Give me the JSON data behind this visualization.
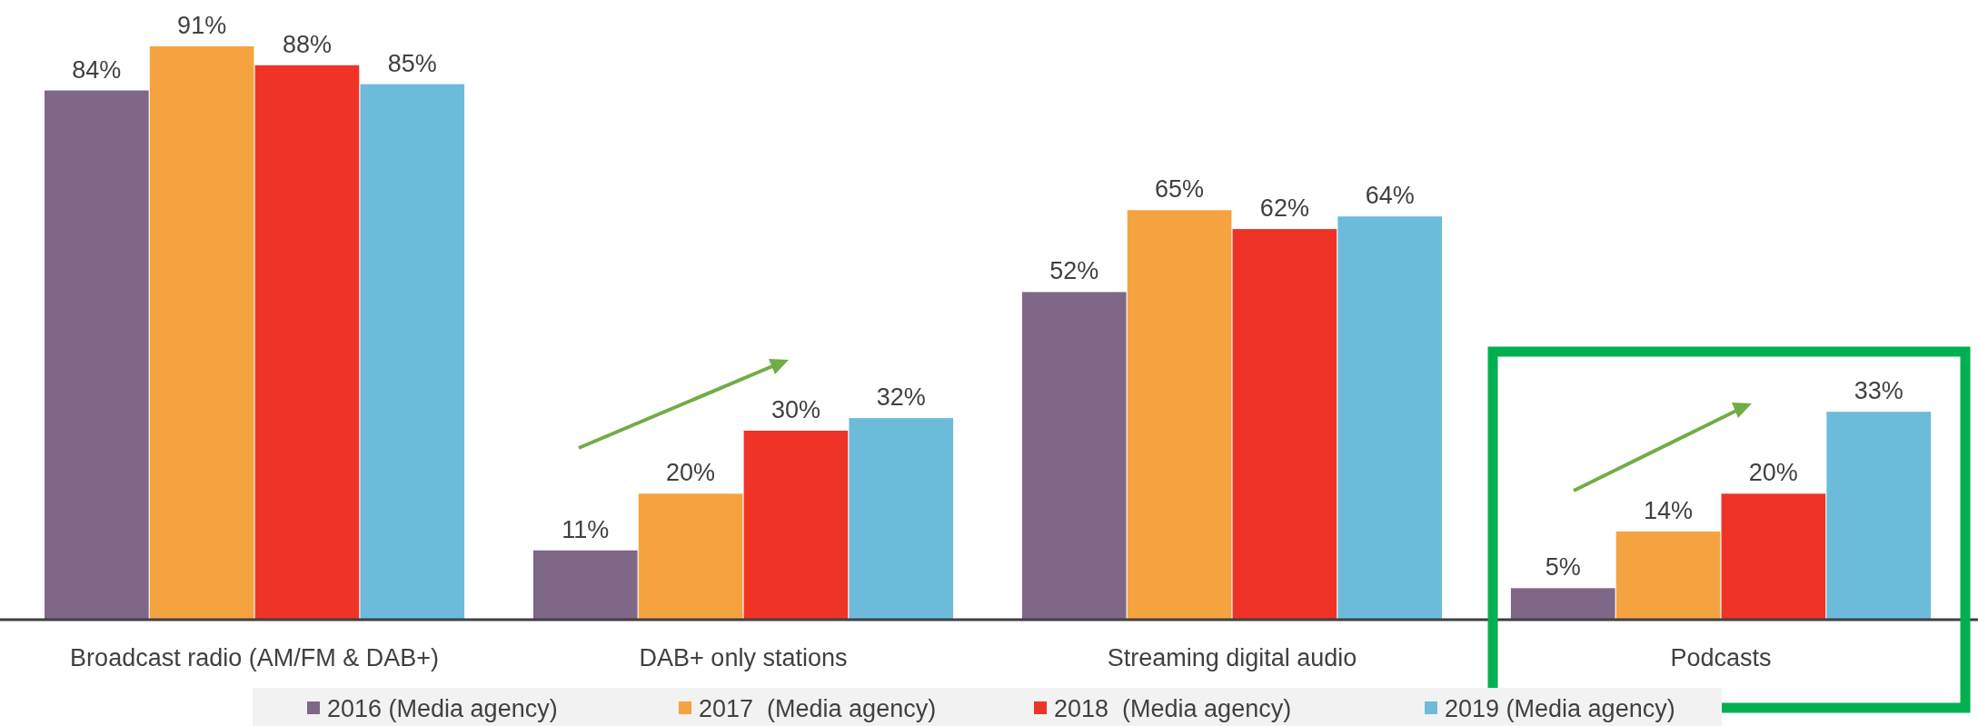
{
  "chart_data": {
    "type": "bar",
    "categories": [
      "Broadcast radio (AM/FM & DAB+)",
      "DAB+ only stations",
      "Streaming digital audio",
      "Podcasts"
    ],
    "series": [
      {
        "name": "2016 (Media agency)",
        "color": "#7f6788",
        "values": [
          84,
          11,
          52,
          5
        ],
        "value_labels": [
          "84%",
          "11%",
          "52%",
          "5%"
        ]
      },
      {
        "name": "2017  (Media agency)",
        "color": "#f5a340",
        "values": [
          91,
          20,
          65,
          14
        ],
        "value_labels": [
          "91%",
          "20%",
          "65%",
          "14%"
        ]
      },
      {
        "name": "2018  (Media agency)",
        "color": "#ef3326",
        "values": [
          88,
          30,
          62,
          20
        ],
        "value_labels": [
          "88%",
          "30%",
          "62%",
          "20%"
        ]
      },
      {
        "name": "2019 (Media agency)",
        "color": "#6cbbdb",
        "values": [
          85,
          32,
          64,
          33
        ],
        "value_labels": [
          "85%",
          "32%",
          "64%",
          "33%"
        ]
      }
    ],
    "legend": "bottom",
    "grid": false
  }
}
